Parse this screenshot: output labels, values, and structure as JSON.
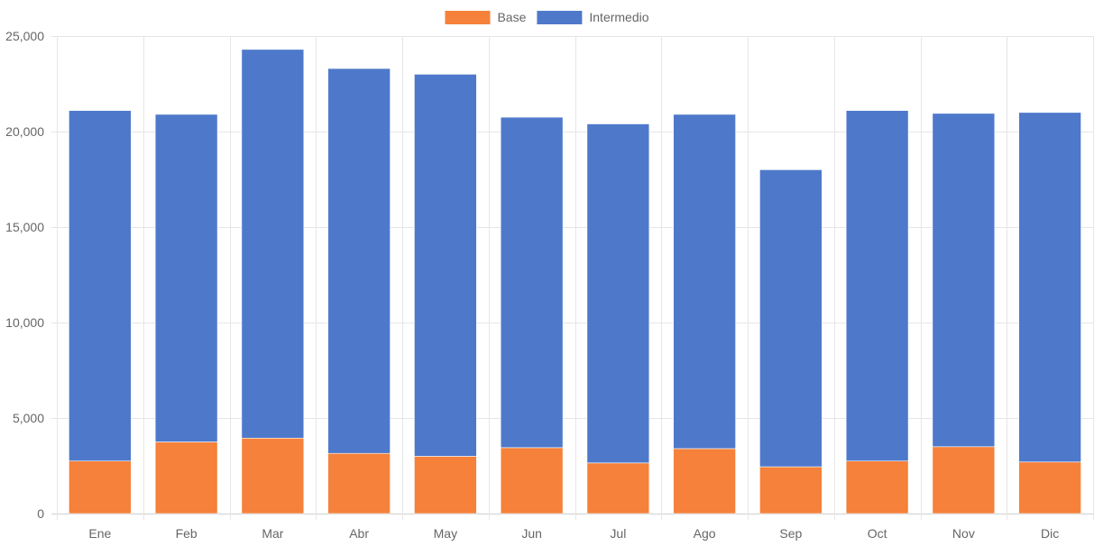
{
  "chart_data": {
    "type": "bar",
    "stacked": true,
    "categories": [
      "Ene",
      "Feb",
      "Mar",
      "Abr",
      "May",
      "Jun",
      "Jul",
      "Ago",
      "Sep",
      "Oct",
      "Nov",
      "Dic"
    ],
    "series": [
      {
        "name": "Base",
        "color": "#f5813a",
        "values": [
          2750,
          3750,
          3950,
          3150,
          3000,
          3450,
          2650,
          3400,
          2450,
          2750,
          3500,
          2700
        ]
      },
      {
        "name": "Intermedio",
        "color": "#4e79cb",
        "values": [
          18350,
          17150,
          20350,
          20150,
          20000,
          17300,
          17750,
          17500,
          15550,
          18350,
          17450,
          18300
        ]
      }
    ],
    "ylim": [
      0,
      25000
    ],
    "yticks": [
      "0",
      "5,000",
      "10,000",
      "15,000",
      "20,000",
      "25,000"
    ],
    "grid": true,
    "legend_position": "top"
  }
}
